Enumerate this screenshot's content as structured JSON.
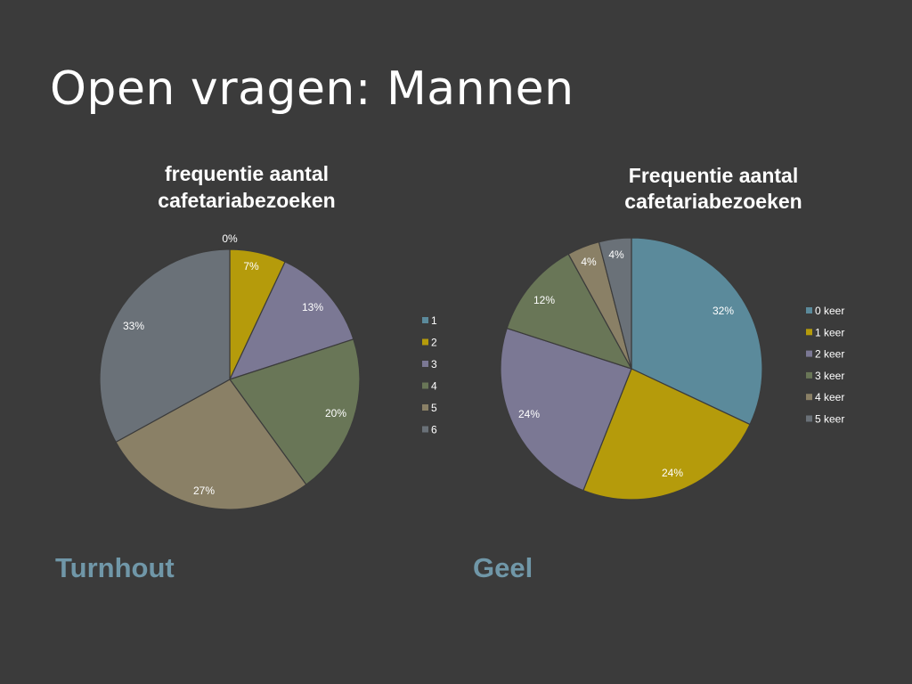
{
  "slide": {
    "title": "Open vragen: Mannen"
  },
  "captions": {
    "left": "Turnhout",
    "right": "Geel"
  },
  "colors": {
    "background": "#3b3b3b",
    "caption": "#7097a8",
    "slices": [
      "#5b8a9b",
      "#b59b0b",
      "#7b7894",
      "#697657",
      "#8a8066",
      "#6a7178"
    ],
    "slice_borders": "#3b3b3b"
  },
  "chart_data": [
    {
      "type": "pie",
      "title": "frequentie aantal cafetariabezoeken",
      "title_lines": [
        "frequentie aantal",
        "cafetariabezoeken"
      ],
      "categories": [
        "1",
        "2",
        "3",
        "4",
        "5",
        "6"
      ],
      "values": [
        0,
        7,
        13,
        20,
        27,
        33
      ],
      "labels": [
        "0%",
        "7%",
        "13%",
        "20%",
        "27%",
        "33%"
      ],
      "legend": "right"
    },
    {
      "type": "pie",
      "title": "Frequentie aantal cafetariabezoeken",
      "title_lines": [
        "Frequentie aantal",
        "cafetariabezoeken"
      ],
      "categories": [
        "0 keer",
        "1 keer",
        "2 keer",
        "3 keer",
        "4 keer",
        "5 keer"
      ],
      "values": [
        32,
        24,
        24,
        12,
        4,
        4
      ],
      "labels": [
        "32%",
        "24%",
        "24%",
        "12%",
        "4%",
        "4%"
      ],
      "legend": "right"
    }
  ]
}
